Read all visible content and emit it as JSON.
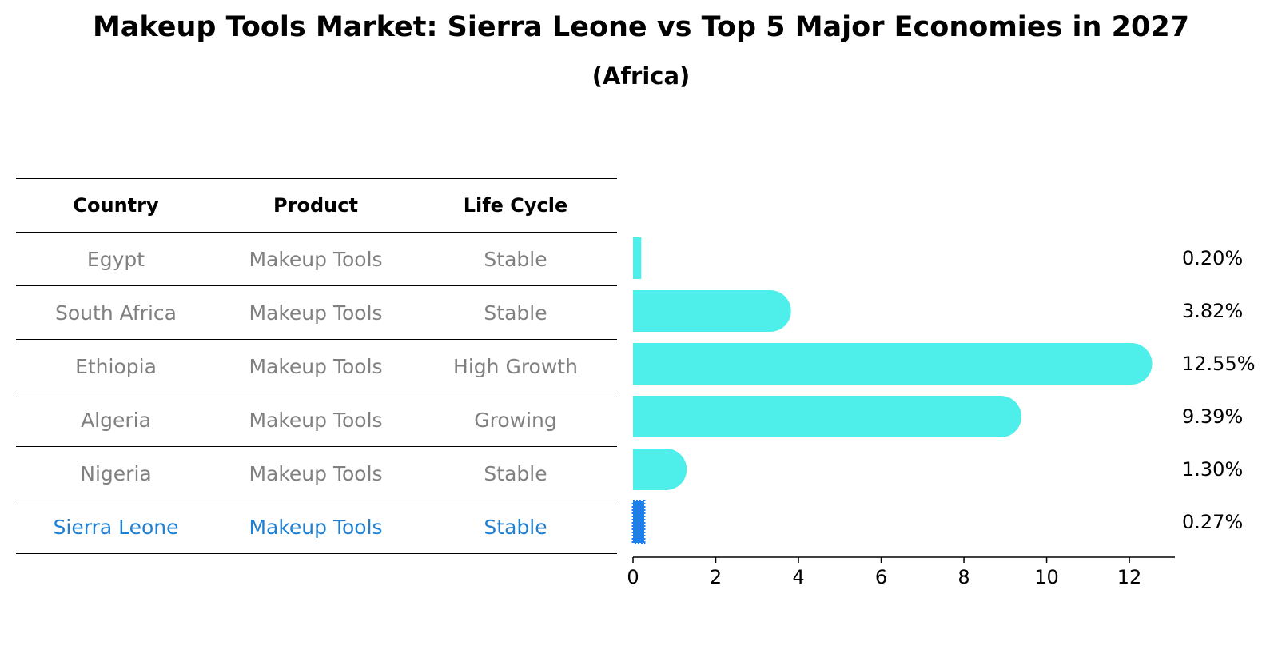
{
  "title": "Makeup Tools Market: Sierra Leone vs Top 5 Major Economies in 2027",
  "subtitle": "(Africa)",
  "table": {
    "headers": [
      "Country",
      "Product",
      "Life Cycle"
    ],
    "rows": [
      [
        "Egypt",
        "Makeup Tools",
        "Stable"
      ],
      [
        "South Africa",
        "Makeup Tools",
        "Stable"
      ],
      [
        "Ethiopia",
        "Makeup Tools",
        "High Growth"
      ],
      [
        "Algeria",
        "Makeup Tools",
        "Growing"
      ],
      [
        "Nigeria",
        "Makeup Tools",
        "Stable"
      ],
      [
        "Sierra Leone",
        "Makeup Tools",
        "Stable"
      ]
    ]
  },
  "chart_data": {
    "type": "bar",
    "orientation": "horizontal",
    "categories": [
      "Egypt",
      "South Africa",
      "Ethiopia",
      "Algeria",
      "Nigeria",
      "Sierra Leone"
    ],
    "values": [
      0.2,
      3.82,
      12.55,
      9.39,
      1.3,
      0.27
    ],
    "value_labels": [
      "0.20%",
      "3.82%",
      "12.55%",
      "9.39%",
      "1.30%",
      "0.27%"
    ],
    "xlim": [
      0,
      13.1
    ],
    "xticks": [
      0,
      2,
      4,
      6,
      8,
      10,
      12
    ],
    "grid": false,
    "colors": {
      "bar": "#4eeeea",
      "highlight": "#1e7fe8"
    },
    "highlight_index": 5
  }
}
